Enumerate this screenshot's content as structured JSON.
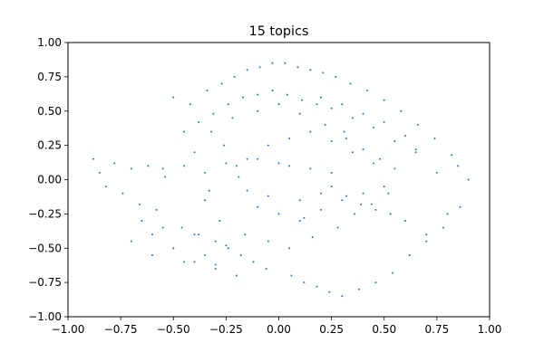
{
  "chart_data": {
    "type": "scatter",
    "title": "15 topics",
    "xlabel": "",
    "ylabel": "",
    "xlim": [
      -1.0,
      1.0
    ],
    "ylim": [
      -1.0,
      1.0
    ],
    "xticks": [
      -1.0,
      -0.75,
      -0.5,
      -0.25,
      0.0,
      0.25,
      0.5,
      0.75,
      1.0
    ],
    "yticks": [
      -1.0,
      -0.75,
      -0.5,
      -0.25,
      0.0,
      0.25,
      0.5,
      0.75,
      1.0
    ],
    "xtick_labels": [
      "−1.00",
      "−0.75",
      "−0.50",
      "−0.25",
      "0.00",
      "0.25",
      "0.50",
      "0.75",
      "1.00"
    ],
    "ytick_labels": [
      "−1.00",
      "−0.75",
      "−0.50",
      "−0.25",
      "0.00",
      "0.25",
      "0.50",
      "0.75",
      "1.00"
    ],
    "grid": false,
    "legend": "none",
    "point_color": "#1f77b4",
    "series": [
      {
        "x": [
          -0.88,
          -0.85,
          -0.82,
          -0.78,
          -0.74,
          -0.7,
          -0.66,
          -0.62,
          -0.58,
          -0.54,
          -0.5,
          -0.46,
          -0.42,
          -0.38,
          -0.34,
          -0.3,
          -0.27,
          -0.24,
          -0.21,
          -0.18,
          -0.15,
          -0.12,
          -0.09,
          -0.06,
          -0.03,
          0.03,
          0.06,
          0.09,
          0.12,
          0.15,
          0.18,
          0.21,
          0.24,
          0.27,
          0.3,
          0.34,
          0.38,
          0.42,
          0.46,
          0.5,
          0.54,
          0.58,
          0.62,
          0.66,
          0.7,
          0.74,
          0.78,
          0.82,
          0.86,
          0.9,
          -0.4,
          -0.35,
          -0.32,
          -0.28,
          -0.22,
          -0.16,
          -0.1,
          -0.05,
          0.0,
          0.05,
          0.1,
          0.16,
          0.22,
          0.28,
          0.32,
          0.36,
          0.4,
          0.44,
          0.48,
          0.52,
          -0.6,
          -0.55,
          -0.5,
          -0.45,
          -0.4,
          -0.35,
          -0.3,
          -0.25,
          -0.2,
          -0.15,
          -0.1,
          -0.05,
          0.0,
          0.05,
          0.1,
          0.15,
          0.2,
          0.25,
          0.3,
          0.35,
          0.4,
          0.45,
          0.5,
          0.55,
          0.6,
          0.65,
          0.7,
          0.75,
          0.8,
          0.85,
          -0.2,
          -0.15,
          -0.1,
          -0.05,
          0.0,
          0.05,
          0.1,
          0.15,
          0.2,
          0.25,
          -0.7,
          -0.65,
          -0.6,
          -0.55,
          -0.5,
          -0.45,
          -0.4,
          -0.35,
          -0.3,
          -0.25,
          0.2,
          0.25,
          0.3,
          0.35,
          0.4,
          0.45,
          0.5,
          0.55,
          0.6,
          0.65,
          -0.45,
          -0.38,
          -0.31,
          -0.24,
          -0.17,
          -0.1,
          -0.03,
          0.04,
          0.11,
          0.18,
          0.25,
          0.32,
          0.39,
          0.46,
          0.53,
          -0.26,
          -0.33,
          -0.19,
          0.12,
          0.31
        ],
        "y": [
          0.15,
          0.05,
          -0.05,
          0.12,
          -0.1,
          0.08,
          -0.18,
          0.1,
          -0.22,
          0.02,
          0.6,
          -0.35,
          0.55,
          -0.4,
          0.65,
          -0.45,
          0.7,
          -0.5,
          0.75,
          -0.55,
          0.8,
          -0.6,
          0.82,
          -0.65,
          0.85,
          0.85,
          -0.7,
          0.82,
          -0.75,
          0.8,
          -0.78,
          0.78,
          -0.82,
          0.75,
          -0.85,
          0.7,
          -0.8,
          0.65,
          -0.75,
          0.58,
          -0.68,
          0.5,
          -0.55,
          0.4,
          -0.45,
          0.3,
          -0.35,
          0.18,
          -0.2,
          0.0,
          0.2,
          -0.15,
          0.35,
          -0.3,
          0.45,
          -0.4,
          0.5,
          -0.45,
          0.55,
          -0.5,
          0.48,
          -0.42,
          0.4,
          -0.35,
          0.3,
          -0.25,
          0.22,
          -0.18,
          0.15,
          -0.1,
          -0.4,
          0.08,
          -0.5,
          0.1,
          -0.6,
          0.05,
          -0.65,
          0.12,
          -0.7,
          0.15,
          -0.2,
          0.25,
          -0.25,
          0.3,
          -0.3,
          0.35,
          -0.22,
          0.28,
          -0.15,
          0.2,
          -0.1,
          0.12,
          -0.05,
          0.08,
          -0.3,
          0.2,
          -0.4,
          0.05,
          -0.25,
          0.1,
          0.1,
          -0.08,
          0.15,
          -0.12,
          0.12,
          0.1,
          -0.15,
          0.08,
          -0.1,
          0.05,
          -0.45,
          -0.3,
          -0.55,
          -0.35,
          -0.5,
          -0.6,
          -0.4,
          -0.55,
          -0.62,
          -0.48,
          0.6,
          0.52,
          0.55,
          0.45,
          0.48,
          0.38,
          0.42,
          0.28,
          0.32,
          0.22,
          0.35,
          0.42,
          0.48,
          0.55,
          0.6,
          0.62,
          0.65,
          0.62,
          0.58,
          0.55,
          -0.05,
          -0.12,
          -0.18,
          -0.22,
          -0.25,
          0.25,
          -0.08,
          0.02,
          -0.28,
          0.35
        ]
      }
    ]
  }
}
